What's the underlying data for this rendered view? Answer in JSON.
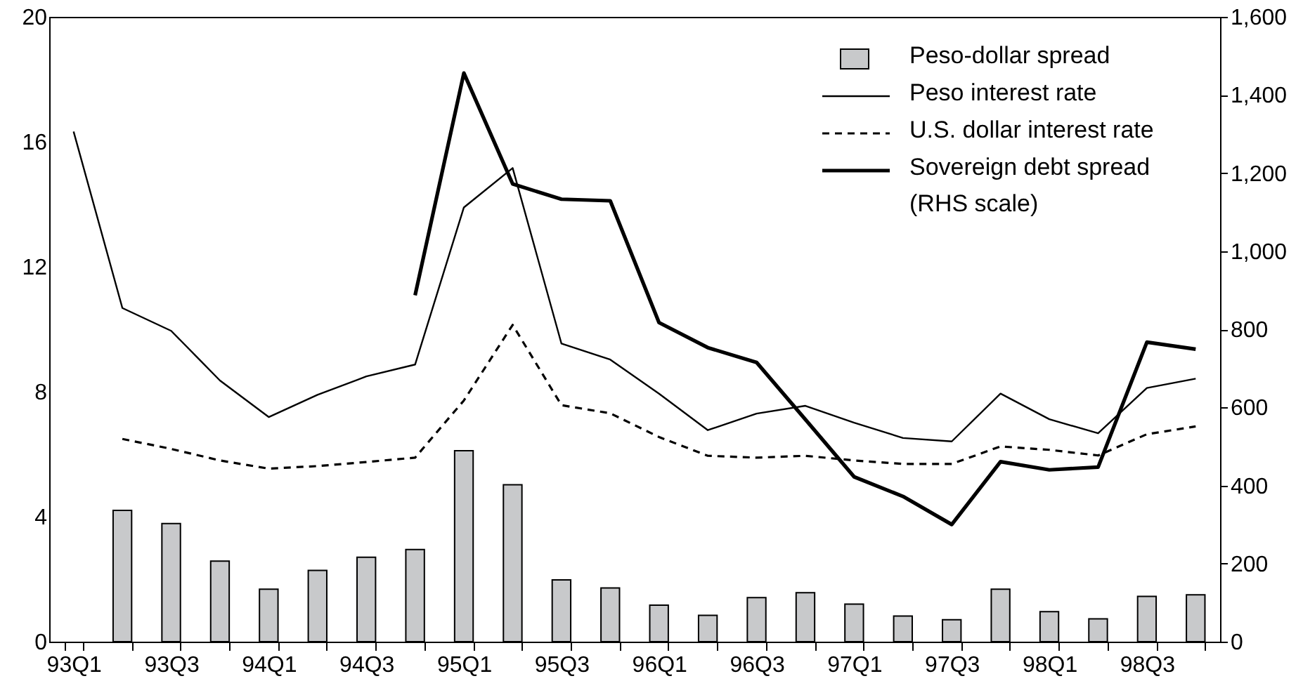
{
  "chart_data": {
    "type": "bar",
    "categories": [
      "93Q1",
      null,
      "93Q3",
      null,
      "94Q1",
      null,
      "94Q3",
      null,
      "95Q1",
      null,
      "95Q3",
      null,
      "96Q1",
      null,
      "96Q3",
      null,
      "97Q1",
      null,
      "97Q3",
      null,
      "98Q1",
      null,
      "98Q3",
      null
    ],
    "ylim": [
      0,
      20
    ],
    "yticks": [
      0,
      4,
      8,
      12,
      16,
      20
    ],
    "y2lim": [
      0,
      1600
    ],
    "y2ticks": [
      0,
      200,
      400,
      600,
      800,
      {
        "value": 1000,
        "label": "1,000"
      },
      {
        "value": 1200,
        "label": "1,200"
      },
      {
        "value": 1400,
        "label": "1,400"
      },
      {
        "value": 1600,
        "label": "1,600"
      }
    ],
    "grid": false,
    "legend": "top right",
    "marker": "none",
    "series": [
      {
        "name": "Peso-dollar spread",
        "color": "#c8c9cb",
        "values": [
          null,
          4.2,
          3.78,
          2.58,
          1.68,
          2.28,
          2.7,
          2.95,
          6.11,
          5.02,
          1.98,
          1.72,
          1.17,
          0.84,
          1.41,
          1.57,
          1.2,
          0.82,
          0.7,
          1.68,
          0.96,
          0.73,
          1.45,
          1.5
        ]
      },
      {
        "name": "Peso interest rate",
        "type": "line",
        "color": "#000000",
        "line_style": "solid",
        "values": [
          16.33,
          10.68,
          9.95,
          8.36,
          7.19,
          7.9,
          8.49,
          8.87,
          13.9,
          15.16,
          9.54,
          9.03,
          7.94,
          6.77,
          7.3,
          7.55,
          7.01,
          6.52,
          6.41,
          7.94,
          7.12,
          6.67,
          8.12,
          8.42
        ]
      },
      {
        "name": "U.S. dollar interest rate",
        "type": "line",
        "color": "#000000",
        "line_style": "dashed",
        "values": [
          null,
          6.49,
          6.17,
          5.8,
          5.54,
          5.62,
          5.75,
          5.89,
          7.72,
          10.14,
          7.57,
          7.31,
          6.55,
          5.95,
          5.89,
          5.95,
          5.8,
          5.69,
          5.69,
          6.25,
          6.14,
          5.96,
          6.64,
          6.89
        ]
      },
      {
        "name": "Sovereign debt spread (RHS scale)",
        "type": "line",
        "axis": "y2",
        "color": "#000000",
        "line_style": "solid",
        "values": [
          null,
          null,
          null,
          null,
          null,
          null,
          null,
          887,
          1456,
          1172,
          1133,
          1129,
          817,
          753,
          715,
          569,
          422,
          372,
          300,
          461,
          440,
          447,
          767,
          749
        ]
      }
    ]
  }
}
